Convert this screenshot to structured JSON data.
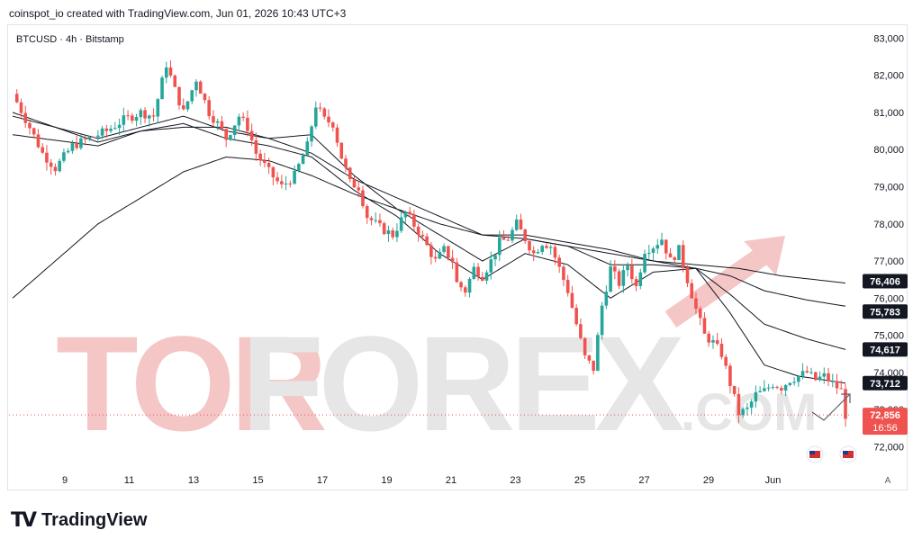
{
  "header": {
    "title": "coinspot_io created with TradingView.com, Jun 01, 2026 10:43 UTC+3"
  },
  "symbol": "BTCUSD · 4h · Bitstamp",
  "footer": {
    "brand": "TradingView"
  },
  "watermark": {
    "text": "TORFOREX.COM"
  },
  "auto_scale_label": "A",
  "chart_data": {
    "type": "candlestick",
    "title": "",
    "symbol": "BTCUSD",
    "timeframe": "4h",
    "exchange": "Bitstamp",
    "x_tick_labels": [
      "9",
      "11",
      "13",
      "15",
      "17",
      "19",
      "21",
      "23",
      "25",
      "27",
      "29",
      "Jun"
    ],
    "y_tick_labels": [
      "72,000",
      "73,000",
      "74,000",
      "75,000",
      "76,000",
      "77,000",
      "78,000",
      "79,000",
      "80,000",
      "81,000",
      "82,000",
      "83,000"
    ],
    "y_ticks": [
      72000,
      73000,
      74000,
      75000,
      76000,
      77000,
      78000,
      79000,
      80000,
      81000,
      82000,
      83000
    ],
    "ylim": [
      71550,
      83300
    ],
    "grid": false,
    "colors": {
      "up": "#26a69a",
      "down": "#ef5350",
      "ma": "#131722",
      "price_line": "#ef5350"
    },
    "price_labels": [
      {
        "name": "ma-slow",
        "value": 76406,
        "text": "76,406",
        "bg": "#131722",
        "fg": "#ffffff"
      },
      {
        "name": "ma-mid",
        "value": 75783,
        "text": "75,783",
        "bg": "#131722",
        "fg": "#ffffff"
      },
      {
        "name": "ma-fast",
        "value": 74617,
        "text": "74,617",
        "bg": "#131722",
        "fg": "#ffffff"
      },
      {
        "name": "ma-fastest",
        "value": 73712,
        "text": "73,712",
        "bg": "#131722",
        "fg": "#ffffff"
      },
      {
        "name": "last-price",
        "value": 72856,
        "text": "72,856",
        "bg": "#ef5350",
        "fg": "#ffffff"
      }
    ],
    "countdown": "16:56",
    "candle_count": 136,
    "close_path": [
      [
        0,
        81500
      ],
      [
        4,
        80600
      ],
      [
        7,
        79900
      ],
      [
        10,
        79500
      ],
      [
        14,
        80100
      ],
      [
        18,
        80300
      ],
      [
        22,
        80500
      ],
      [
        26,
        80800
      ],
      [
        30,
        81000
      ],
      [
        33,
        80900
      ],
      [
        36,
        82300
      ],
      [
        38,
        81600
      ],
      [
        40,
        81000
      ],
      [
        43,
        81900
      ],
      [
        46,
        81000
      ],
      [
        48,
        80700
      ],
      [
        50,
        80300
      ],
      [
        53,
        80900
      ],
      [
        55,
        80600
      ],
      [
        57,
        79900
      ],
      [
        60,
        79400
      ],
      [
        63,
        79000
      ],
      [
        66,
        79300
      ],
      [
        69,
        80100
      ],
      [
        71,
        81200
      ],
      [
        73,
        80800
      ],
      [
        75,
        80700
      ],
      [
        77,
        79800
      ],
      [
        79,
        79100
      ],
      [
        81,
        79000
      ],
      [
        83,
        78200
      ],
      [
        86,
        77900
      ],
      [
        89,
        77700
      ],
      [
        92,
        78300
      ],
      [
        95,
        77800
      ],
      [
        97,
        77400
      ],
      [
        99,
        77000
      ],
      [
        101,
        77300
      ],
      [
        103,
        77000
      ],
      [
        104,
        76400
      ],
      [
        106,
        76200
      ],
      [
        108,
        76800
      ],
      [
        110,
        76600
      ],
      [
        112,
        77000
      ],
      [
        114,
        77500
      ],
      [
        116,
        77600
      ],
      [
        118,
        78000
      ],
      [
        120,
        77600
      ],
      [
        122,
        77200
      ],
      [
        124,
        77500
      ],
      [
        126,
        77400
      ],
      [
        128,
        76800
      ],
      [
        130,
        76200
      ],
      [
        132,
        75300
      ],
      [
        134,
        74400
      ],
      [
        136,
        74100
      ],
      [
        138,
        75800
      ],
      [
        140,
        76800
      ],
      [
        142,
        76400
      ],
      [
        144,
        76900
      ],
      [
        146,
        76300
      ],
      [
        148,
        77300
      ],
      [
        150,
        77400
      ],
      [
        152,
        77600
      ],
      [
        154,
        77000
      ],
      [
        156,
        77300
      ],
      [
        158,
        76500
      ],
      [
        160,
        75700
      ],
      [
        162,
        75000
      ],
      [
        164,
        74800
      ],
      [
        166,
        74500
      ],
      [
        168,
        73700
      ],
      [
        170,
        72900
      ],
      [
        172,
        73000
      ],
      [
        174,
        73400
      ],
      [
        176,
        73500
      ],
      [
        178,
        73700
      ],
      [
        180,
        73600
      ],
      [
        182,
        73800
      ],
      [
        184,
        73900
      ],
      [
        186,
        74000
      ],
      [
        188,
        73800
      ],
      [
        190,
        73900
      ],
      [
        192,
        73700
      ],
      [
        194,
        73500
      ],
      [
        195,
        72856
      ]
    ],
    "moving_averages": [
      {
        "name": "ma-fastest",
        "points": [
          [
            0,
            81000
          ],
          [
            20,
            80200
          ],
          [
            30,
            80500
          ],
          [
            40,
            80700
          ],
          [
            50,
            80300
          ],
          [
            60,
            80100
          ],
          [
            70,
            79800
          ],
          [
            80,
            78900
          ],
          [
            90,
            78200
          ],
          [
            100,
            77200
          ],
          [
            110,
            76500
          ],
          [
            120,
            77200
          ],
          [
            130,
            76900
          ],
          [
            140,
            76000
          ],
          [
            150,
            76700
          ],
          [
            160,
            76800
          ],
          [
            168,
            75600
          ],
          [
            176,
            74200
          ],
          [
            184,
            73900
          ],
          [
            195,
            73712
          ]
        ]
      },
      {
        "name": "ma-fast",
        "points": [
          [
            0,
            80900
          ],
          [
            20,
            80300
          ],
          [
            30,
            80600
          ],
          [
            40,
            80900
          ],
          [
            50,
            80500
          ],
          [
            60,
            80300
          ],
          [
            70,
            80400
          ],
          [
            80,
            79300
          ],
          [
            90,
            78400
          ],
          [
            100,
            77700
          ],
          [
            110,
            77000
          ],
          [
            120,
            77600
          ],
          [
            130,
            77400
          ],
          [
            140,
            76900
          ],
          [
            150,
            76900
          ],
          [
            160,
            76800
          ],
          [
            168,
            76100
          ],
          [
            176,
            75300
          ],
          [
            186,
            74900
          ],
          [
            195,
            74617
          ]
        ]
      },
      {
        "name": "ma-mid",
        "points": [
          [
            0,
            80400
          ],
          [
            20,
            80100
          ],
          [
            30,
            80500
          ],
          [
            40,
            80600
          ],
          [
            50,
            80600
          ],
          [
            60,
            80300
          ],
          [
            70,
            79900
          ],
          [
            80,
            79200
          ],
          [
            90,
            78700
          ],
          [
            100,
            78200
          ],
          [
            110,
            77700
          ],
          [
            120,
            77700
          ],
          [
            130,
            77500
          ],
          [
            140,
            77300
          ],
          [
            150,
            77000
          ],
          [
            160,
            76800
          ],
          [
            168,
            76600
          ],
          [
            176,
            76200
          ],
          [
            186,
            75950
          ],
          [
            195,
            75783
          ]
        ]
      },
      {
        "name": "ma-slow",
        "points": [
          [
            0,
            76000
          ],
          [
            10,
            77000
          ],
          [
            20,
            78000
          ],
          [
            30,
            78700
          ],
          [
            40,
            79400
          ],
          [
            50,
            79800
          ],
          [
            60,
            79700
          ],
          [
            70,
            79300
          ],
          [
            80,
            78800
          ],
          [
            90,
            78400
          ],
          [
            100,
            78000
          ],
          [
            110,
            77700
          ],
          [
            120,
            77600
          ],
          [
            130,
            77400
          ],
          [
            140,
            77200
          ],
          [
            150,
            77000
          ],
          [
            160,
            76900
          ],
          [
            170,
            76800
          ],
          [
            180,
            76600
          ],
          [
            195,
            76406
          ]
        ]
      }
    ]
  }
}
